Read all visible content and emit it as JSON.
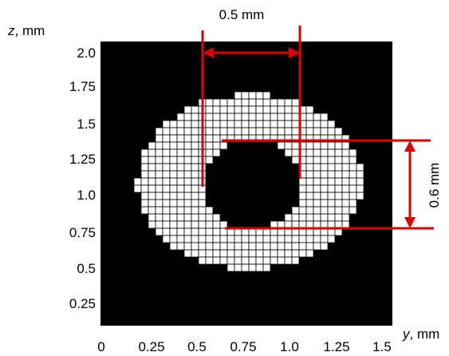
{
  "figure": {
    "y_axis": {
      "name": "z",
      "unit": ", mm",
      "ticks": [
        "2.0",
        "1.75",
        "1.5",
        "1.25",
        "1.0",
        "0.75",
        "0.5",
        "0.25"
      ]
    },
    "x_axis": {
      "name": "y",
      "unit": ", mm",
      "ticks": [
        "0",
        "0.25",
        "0.5",
        "0.75",
        "1.0",
        "1.25",
        "1.5"
      ]
    },
    "annotations": {
      "horizontal_dimension": "0.5 mm",
      "vertical_dimension": "0.6 mm"
    },
    "colors": {
      "background": "#000000",
      "grid_fill": "#ffffff",
      "grid_line": "#000000",
      "dimension_line": "#e00000"
    }
  }
}
